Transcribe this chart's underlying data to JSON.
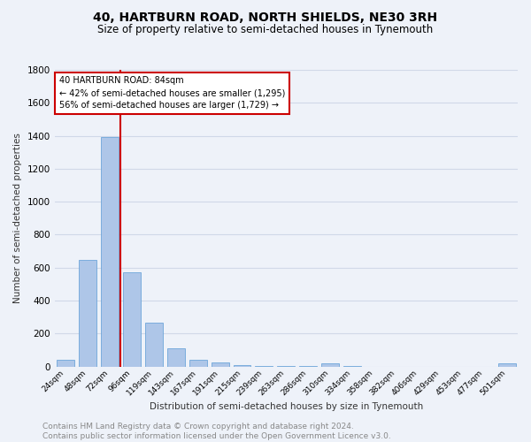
{
  "title": "40, HARTBURN ROAD, NORTH SHIELDS, NE30 3RH",
  "subtitle": "Size of property relative to semi-detached houses in Tynemouth",
  "xlabel": "Distribution of semi-detached houses by size in Tynemouth",
  "ylabel": "Number of semi-detached properties",
  "categories": [
    "24sqm",
    "48sqm",
    "72sqm",
    "96sqm",
    "119sqm",
    "143sqm",
    "167sqm",
    "191sqm",
    "215sqm",
    "239sqm",
    "263sqm",
    "286sqm",
    "310sqm",
    "334sqm",
    "358sqm",
    "382sqm",
    "406sqm",
    "429sqm",
    "453sqm",
    "477sqm",
    "501sqm"
  ],
  "values": [
    40,
    645,
    1390,
    570,
    265,
    110,
    38,
    22,
    10,
    5,
    3,
    2,
    20,
    1,
    0,
    0,
    0,
    0,
    0,
    0,
    18
  ],
  "bar_color": "#aec6e8",
  "bar_edge_color": "#5b9bd5",
  "grid_color": "#d0d8e8",
  "background_color": "#eef2f9",
  "vline_color": "#cc0000",
  "annotation_text": "40 HARTBURN ROAD: 84sqm\n← 42% of semi-detached houses are smaller (1,295)\n56% of semi-detached houses are larger (1,729) →",
  "annotation_box_color": "#ffffff",
  "annotation_box_edge": "#cc0000",
  "ylim": [
    0,
    1800
  ],
  "yticks": [
    0,
    200,
    400,
    600,
    800,
    1000,
    1200,
    1400,
    1600,
    1800
  ],
  "footer": "Contains HM Land Registry data © Crown copyright and database right 2024.\nContains public sector information licensed under the Open Government Licence v3.0.",
  "title_fontsize": 10,
  "subtitle_fontsize": 8.5,
  "footer_fontsize": 6.5,
  "annotation_fontsize": 7.0,
  "ylabel_fontsize": 7.5,
  "xlabel_fontsize": 7.5,
  "ytick_fontsize": 7.5,
  "xtick_fontsize": 6.5
}
